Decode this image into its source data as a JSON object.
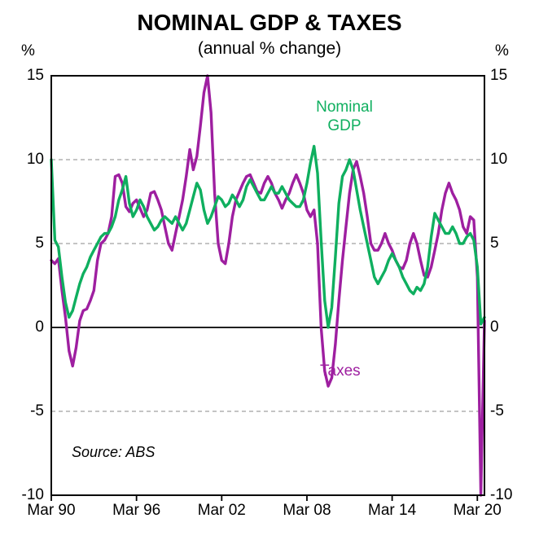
{
  "chart": {
    "title": "NOMINAL GDP & TAXES",
    "subtitle": "(annual % change)",
    "y_unit": "%",
    "source": "Source: ABS",
    "annotations": {
      "gdp": "Nominal\nGDP",
      "taxes": "Taxes"
    }
  },
  "chart_data": {
    "type": "line",
    "title": "NOMINAL GDP & TAXES",
    "subtitle": "(annual % change)",
    "x_start": "Mar 1990",
    "x_end": "Sep 2020",
    "frequency": "quarterly",
    "ylim": [
      -10,
      15
    ],
    "y_ticks": [
      15,
      10,
      5,
      0,
      -5,
      -10
    ],
    "gridline_values": [
      10,
      5,
      -5
    ],
    "zero_line": true,
    "grid_style": "dashed",
    "legend_position": "inline-annotations",
    "x_ticks": [
      {
        "label": "Mar 90",
        "index": 0
      },
      {
        "label": "Mar 96",
        "index": 24
      },
      {
        "label": "Mar 02",
        "index": 48
      },
      {
        "label": "Mar 08",
        "index": 72
      },
      {
        "label": "Mar 14",
        "index": 96
      },
      {
        "label": "Mar 20",
        "index": 120
      }
    ],
    "series": [
      {
        "name": "Nominal GDP",
        "color": "#0faf5f",
        "values": [
          10.0,
          5.2,
          4.8,
          3.0,
          1.5,
          0.6,
          1.0,
          1.8,
          2.6,
          3.2,
          3.6,
          4.2,
          4.6,
          5.0,
          5.4,
          5.6,
          5.6,
          6.0,
          6.6,
          7.6,
          8.2,
          9.0,
          7.4,
          6.6,
          7.0,
          7.6,
          7.2,
          6.6,
          6.2,
          5.8,
          6.0,
          6.4,
          6.6,
          6.4,
          6.2,
          6.6,
          6.2,
          5.8,
          6.2,
          7.0,
          7.8,
          8.6,
          8.2,
          7.0,
          6.2,
          6.6,
          7.2,
          7.8,
          7.6,
          7.2,
          7.4,
          7.9,
          7.6,
          7.2,
          7.6,
          8.4,
          8.8,
          8.4,
          8.0,
          7.6,
          7.6,
          8.0,
          8.4,
          8.0,
          8.0,
          8.4,
          8.0,
          7.6,
          7.4,
          7.2,
          7.2,
          7.6,
          8.6,
          9.8,
          10.8,
          9.2,
          5.2,
          1.6,
          0.0,
          1.2,
          4.2,
          7.4,
          9.0,
          9.4,
          10.0,
          9.4,
          8.2,
          7.0,
          6.0,
          5.0,
          4.0,
          3.0,
          2.6,
          3.0,
          3.4,
          4.0,
          4.4,
          4.0,
          3.6,
          3.0,
          2.6,
          2.2,
          2.0,
          2.4,
          2.2,
          2.6,
          3.6,
          5.4,
          6.8,
          6.4,
          6.0,
          5.6,
          5.6,
          6.0,
          5.6,
          5.0,
          5.0,
          5.4,
          5.6,
          5.2,
          3.6,
          0.2,
          0.6
        ]
      },
      {
        "name": "Taxes",
        "color": "#9e1fa0",
        "values": [
          4.0,
          3.8,
          4.1,
          2.2,
          0.6,
          -1.4,
          -2.3,
          -1.2,
          0.4,
          1.0,
          1.1,
          1.6,
          2.2,
          4.0,
          5.0,
          5.2,
          5.6,
          6.6,
          9.0,
          9.1,
          8.6,
          7.2,
          6.9,
          7.4,
          7.6,
          7.1,
          6.6,
          7.0,
          8.0,
          8.1,
          7.6,
          7.0,
          6.0,
          5.0,
          4.6,
          5.6,
          6.6,
          7.6,
          9.0,
          10.6,
          9.4,
          10.2,
          12.0,
          14.0,
          15.0,
          12.8,
          8.0,
          5.0,
          4.0,
          3.8,
          5.0,
          6.6,
          7.6,
          8.1,
          8.6,
          9.0,
          9.1,
          8.6,
          8.1,
          8.0,
          8.6,
          9.0,
          8.6,
          8.0,
          7.6,
          7.1,
          7.6,
          8.0,
          8.6,
          9.1,
          8.6,
          8.0,
          7.0,
          6.6,
          7.0,
          5.0,
          0.0,
          -2.6,
          -3.5,
          -3.0,
          -1.0,
          1.6,
          4.0,
          6.0,
          8.0,
          9.4,
          9.9,
          9.0,
          8.0,
          6.6,
          5.0,
          4.6,
          4.6,
          5.0,
          5.6,
          5.0,
          4.6,
          4.0,
          3.6,
          3.5,
          4.0,
          5.0,
          5.6,
          5.0,
          4.0,
          3.1,
          3.0,
          3.6,
          4.6,
          5.6,
          7.0,
          8.0,
          8.6,
          8.0,
          7.6,
          7.0,
          6.0,
          5.6,
          6.6,
          6.4,
          3.0,
          -10.0,
          0.4
        ]
      }
    ],
    "source": "Source: ABS"
  }
}
